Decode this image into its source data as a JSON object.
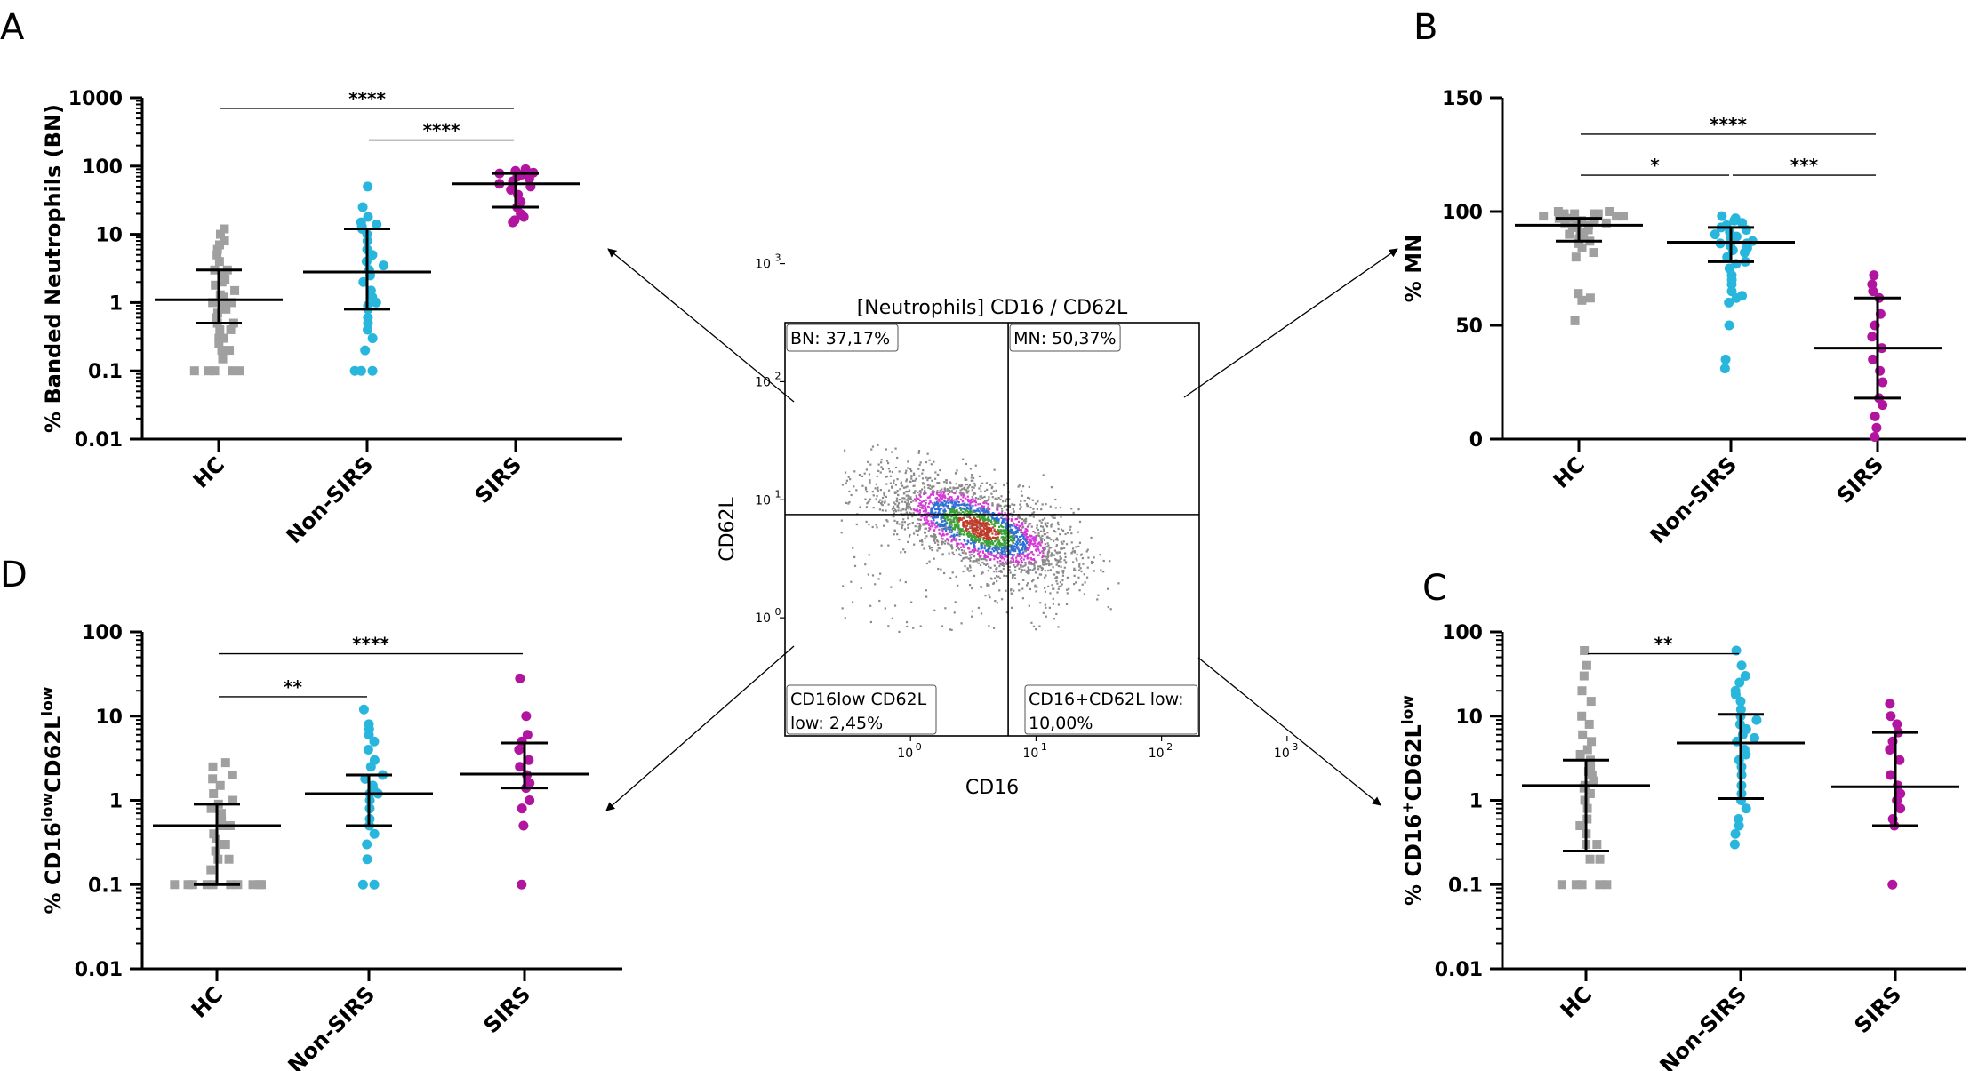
{
  "colors": {
    "hc": "#a0a0a0",
    "nonsirs": "#29b6dd",
    "sirs": "#b1149f",
    "axis": "#000000"
  },
  "chart_data": [
    {
      "panel": "A",
      "type": "scatter",
      "yscale": "log",
      "ylabel": "% Banded Neutrophils (BN)",
      "yticks": [
        "0.01",
        "0.1",
        "1",
        "10",
        "100",
        "1000"
      ],
      "ylim": [
        0.01,
        1000
      ],
      "categories": [
        "HC",
        "Non-SIRS",
        "SIRS"
      ],
      "series": [
        {
          "name": "HC",
          "marker": "square",
          "median": 1.1,
          "q1": 0.5,
          "q3": 3.0,
          "values": [
            0.1,
            0.1,
            0.1,
            0.1,
            0.1,
            0.15,
            0.2,
            0.2,
            0.25,
            0.3,
            0.3,
            0.4,
            0.4,
            0.5,
            0.5,
            0.6,
            0.7,
            0.8,
            0.9,
            1,
            1,
            1.1,
            1.2,
            1.3,
            1.5,
            1.8,
            2,
            2.2,
            2.5,
            3,
            3,
            4,
            5,
            6,
            7,
            8,
            10,
            12
          ]
        },
        {
          "name": "Non-SIRS",
          "marker": "circle",
          "median": 2.8,
          "q1": 0.8,
          "q3": 12,
          "values": [
            0.1,
            0.1,
            0.1,
            0.2,
            0.3,
            0.4,
            0.5,
            0.6,
            0.8,
            0.9,
            1,
            1.2,
            1.5,
            2,
            2.5,
            3,
            3.5,
            4,
            5,
            6,
            8,
            10,
            12,
            13,
            14,
            15,
            18,
            25,
            50
          ]
        },
        {
          "name": "SIRS",
          "marker": "circle",
          "median": 55,
          "q1": 25,
          "q3": 78,
          "values": [
            15,
            16,
            18,
            20,
            25,
            30,
            38,
            45,
            50,
            55,
            60,
            65,
            70,
            75,
            78,
            80,
            85,
            90
          ]
        }
      ],
      "significance": [
        {
          "from": "HC",
          "to": "SIRS",
          "label": "****",
          "y": 700
        },
        {
          "from": "Non-SIRS",
          "to": "SIRS",
          "label": "****",
          "y": 240
        }
      ]
    },
    {
      "panel": "B",
      "type": "scatter",
      "yscale": "linear",
      "ylabel": "% MN",
      "yticks": [
        "0",
        "50",
        "100",
        "150"
      ],
      "ylim": [
        0,
        150
      ],
      "categories": [
        "HC",
        "Non-SIRS",
        "SIRS"
      ],
      "series": [
        {
          "name": "HC",
          "marker": "square",
          "median": 94,
          "q1": 87,
          "q3": 97,
          "values": [
            52,
            61,
            62,
            64,
            80,
            82,
            84,
            86,
            87,
            88,
            89,
            90,
            91,
            92,
            93,
            94,
            94,
            95,
            95,
            96,
            96,
            97,
            97,
            97,
            98,
            98,
            98,
            99,
            99,
            99,
            99,
            100,
            100
          ]
        },
        {
          "name": "Non-SIRS",
          "marker": "circle",
          "median": 86.5,
          "q1": 78,
          "q3": 93,
          "values": [
            31,
            35,
            50,
            60,
            62,
            63,
            65,
            68,
            70,
            72,
            75,
            77,
            78,
            80,
            82,
            83,
            84,
            85,
            86,
            86,
            87,
            88,
            89,
            90,
            91,
            92,
            93,
            94,
            95,
            96,
            97,
            98
          ]
        },
        {
          "name": "SIRS",
          "marker": "circle",
          "median": 40,
          "q1": 18,
          "q3": 62,
          "values": [
            1,
            5,
            10,
            15,
            18,
            25,
            30,
            35,
            40,
            45,
            50,
            55,
            62,
            65,
            68,
            72
          ]
        }
      ],
      "significance": [
        {
          "from": "HC",
          "to": "SIRS",
          "label": "****",
          "y": 134
        },
        {
          "from": "HC",
          "to": "Non-SIRS",
          "label": "*",
          "y": 116
        },
        {
          "from": "Non-SIRS",
          "to": "SIRS",
          "label": "***",
          "y": 116
        }
      ]
    },
    {
      "panel": "C",
      "type": "scatter",
      "yscale": "log",
      "ylabel_parts": [
        "% CD16",
        "+",
        "CD62L",
        "low"
      ],
      "yticks": [
        "0.01",
        "0.1",
        "1",
        "10",
        "100"
      ],
      "ylim": [
        0.01,
        100
      ],
      "categories": [
        "HC",
        "Non-SIRS",
        "SIRS"
      ],
      "series": [
        {
          "name": "HC",
          "marker": "square",
          "median": 1.5,
          "q1": 0.25,
          "q3": 3.0,
          "values": [
            0.1,
            0.1,
            0.1,
            0.1,
            0.1,
            0.2,
            0.2,
            0.3,
            0.3,
            0.4,
            0.5,
            0.6,
            0.8,
            1,
            1.2,
            1.4,
            1.5,
            1.7,
            2,
            2.2,
            2.5,
            3,
            3.5,
            4,
            5,
            6,
            8,
            10,
            15,
            20,
            30,
            40,
            60
          ]
        },
        {
          "name": "Non-SIRS",
          "marker": "circle",
          "median": 4.8,
          "q1": 1.05,
          "q3": 10.5,
          "values": [
            0.3,
            0.4,
            0.5,
            0.6,
            0.8,
            1,
            1.2,
            1.5,
            2,
            2.5,
            3,
            3.5,
            4,
            5,
            5.5,
            6,
            7,
            8,
            9,
            10,
            12,
            15,
            18,
            20,
            25,
            30,
            40,
            60
          ]
        },
        {
          "name": "SIRS",
          "marker": "circle",
          "median": 1.45,
          "q1": 0.5,
          "q3": 6.4,
          "values": [
            0.1,
            0.5,
            0.6,
            0.8,
            1,
            1.2,
            1.5,
            2,
            3,
            4,
            5,
            6.4,
            8,
            10,
            14
          ]
        }
      ],
      "significance": [
        {
          "from": "HC",
          "to": "Non-SIRS",
          "label": "**",
          "y": 55
        }
      ]
    },
    {
      "panel": "D",
      "type": "scatter",
      "yscale": "log",
      "ylabel_parts": [
        "% CD16",
        "low",
        "CD62L",
        "low"
      ],
      "yticks": [
        "0.01",
        "0.1",
        "1",
        "10",
        "100"
      ],
      "ylim": [
        0.01,
        100
      ],
      "categories": [
        "HC",
        "Non-SIRS",
        "SIRS"
      ],
      "series": [
        {
          "name": "HC",
          "marker": "square",
          "median": 0.5,
          "q1": 0.1,
          "q3": 0.9,
          "values": [
            0.1,
            0.1,
            0.1,
            0.1,
            0.1,
            0.1,
            0.1,
            0.1,
            0.1,
            0.1,
            0.15,
            0.2,
            0.2,
            0.25,
            0.3,
            0.3,
            0.35,
            0.4,
            0.5,
            0.5,
            0.6,
            0.7,
            0.8,
            0.9,
            1,
            1.2,
            1.5,
            1.8,
            2,
            2.5,
            2.8
          ]
        },
        {
          "name": "Non-SIRS",
          "marker": "circle",
          "median": 1.2,
          "q1": 0.5,
          "q3": 2.0,
          "values": [
            0.1,
            0.1,
            0.2,
            0.3,
            0.4,
            0.5,
            0.6,
            0.8,
            1,
            1.2,
            1.2,
            1.3,
            1.5,
            1.8,
            2,
            2.5,
            3,
            4,
            5,
            6,
            7,
            8,
            12
          ]
        },
        {
          "name": "SIRS",
          "marker": "circle",
          "median": 2.05,
          "q1": 1.4,
          "q3": 4.8,
          "values": [
            0.1,
            0.5,
            0.8,
            1,
            1.4,
            1.6,
            2,
            2.5,
            3,
            4,
            5,
            6,
            10,
            28
          ]
        }
      ],
      "significance": [
        {
          "from": "HC",
          "to": "SIRS",
          "label": "****",
          "y": 55
        },
        {
          "from": "HC",
          "to": "Non-SIRS",
          "label": "**",
          "y": 17
        }
      ]
    },
    {
      "panel": "flow",
      "type": "scatter",
      "title": "[Neutrophils] CD16 / CD62L",
      "xlabel": "CD16",
      "ylabel": "CD62L",
      "tick_base": "10",
      "tick_exps": [
        "0",
        "1",
        "2",
        "3"
      ],
      "quadrants": {
        "top_left": "BN: 37,17%",
        "top_right": "MN: 50,37%",
        "bottom_left_line1": "CD16low CD62L",
        "bottom_left_line2": "low: 2,45%",
        "bottom_right_line1": "CD16+CD62L low:",
        "bottom_right_line2": "10,00%"
      },
      "gate": {
        "x": 6,
        "y": 7.5
      }
    }
  ],
  "panel_labels": {
    "A": "A",
    "B": "B",
    "C": "C",
    "D": "D"
  }
}
